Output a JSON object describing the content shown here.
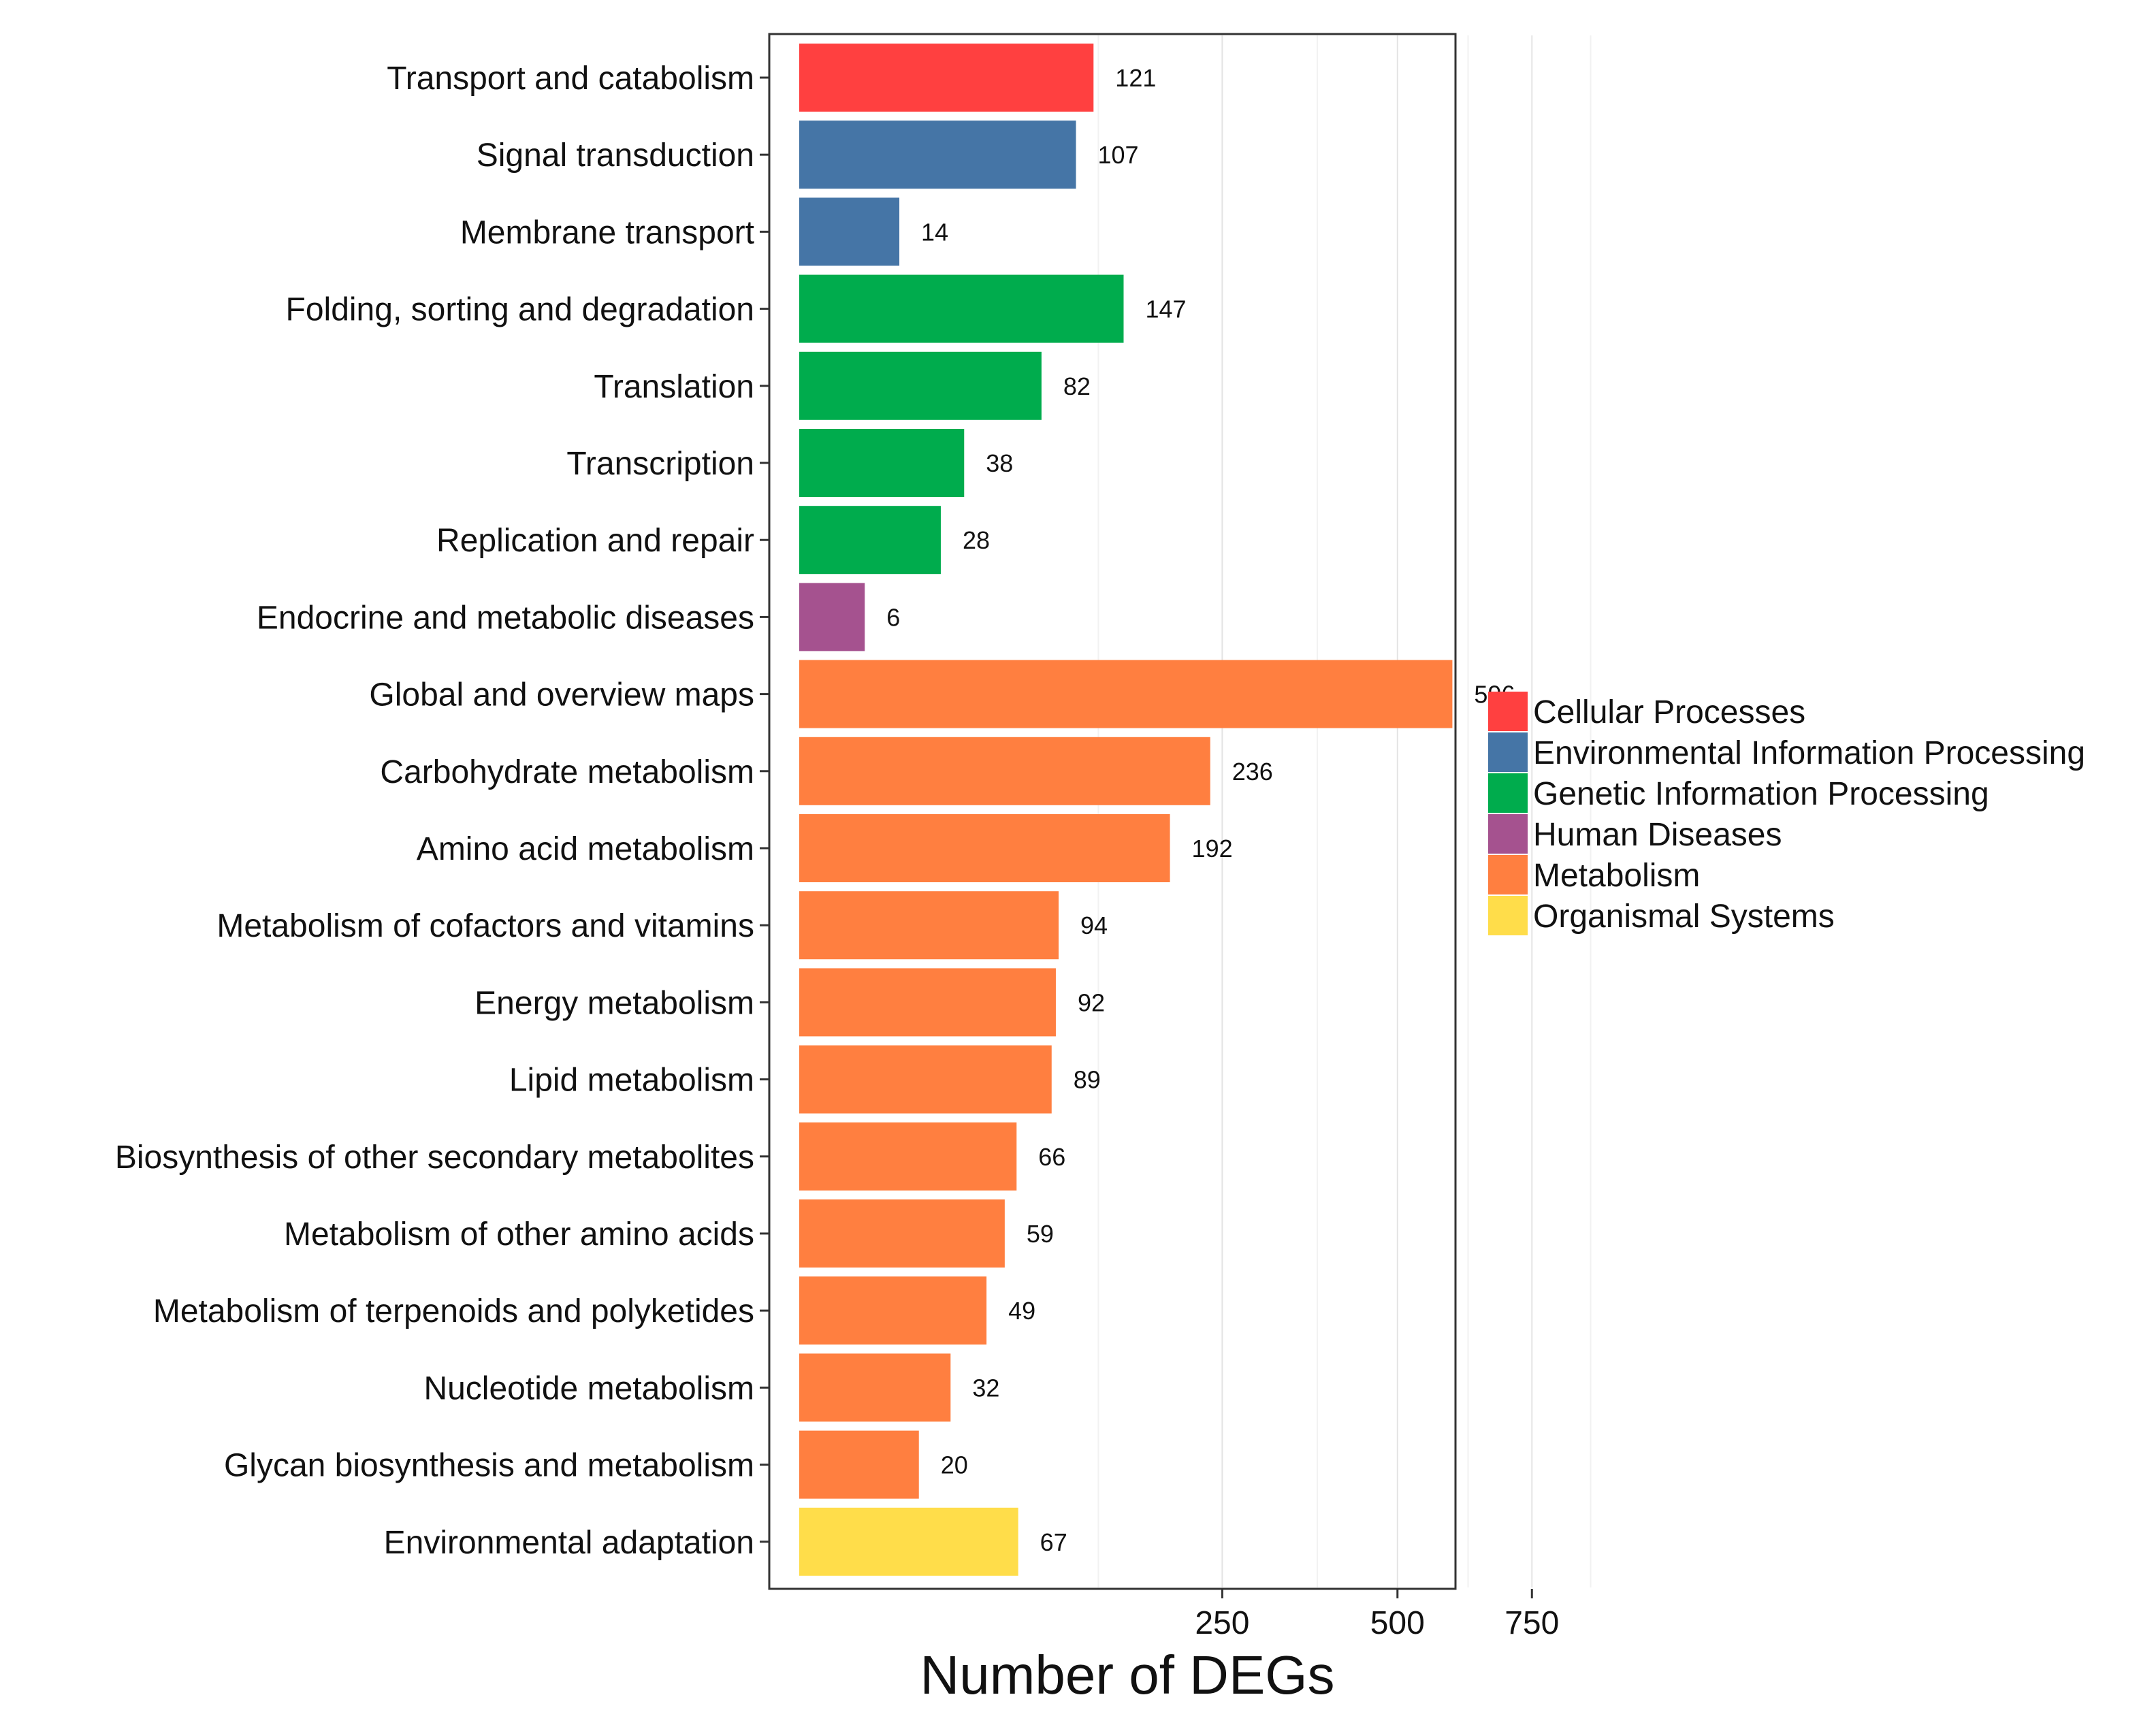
{
  "chart_data": {
    "type": "bar",
    "orientation": "horizontal",
    "xlabel": "Number of DEGs",
    "ylabel": "",
    "x_scale": "sqrt",
    "xlim": [
      0,
      900
    ],
    "x_ticks": [
      250,
      500,
      750
    ],
    "x_minor_gridlines": [
      125,
      375,
      625,
      875
    ],
    "grid": true,
    "legend_position": "right",
    "categories": [
      "Transport and catabolism",
      "Signal transduction",
      "Membrane transport",
      "Folding, sorting and degradation",
      "Translation",
      "Transcription",
      "Replication and repair",
      "Endocrine and metabolic diseases",
      "Global and overview maps",
      "Carbohydrate metabolism",
      "Amino acid metabolism",
      "Metabolism of cofactors and vitamins",
      "Energy metabolism",
      "Lipid metabolism",
      "Biosynthesis of other secondary metabolites",
      "Metabolism of other amino acids",
      "Metabolism of terpenoids and polyketides",
      "Nucleotide metabolism",
      "Glycan biosynthesis and metabolism",
      "Environmental adaptation"
    ],
    "values": [
      121,
      107,
      14,
      147,
      82,
      38,
      28,
      6,
      596,
      236,
      192,
      94,
      92,
      89,
      66,
      59,
      49,
      32,
      20,
      67
    ],
    "value_labels": [
      "121",
      "107",
      "14",
      "147",
      "82",
      "38",
      "28",
      "6",
      "596",
      "236",
      "192",
      "94",
      "92",
      "89",
      "66",
      "59",
      "49",
      "32",
      "20",
      "67"
    ],
    "groups": [
      "Cellular Processes",
      "Environmental Information Processing",
      "Environmental Information Processing",
      "Genetic Information Processing",
      "Genetic Information Processing",
      "Genetic Information Processing",
      "Genetic Information Processing",
      "Human Diseases",
      "Metabolism",
      "Metabolism",
      "Metabolism",
      "Metabolism",
      "Metabolism",
      "Metabolism",
      "Metabolism",
      "Metabolism",
      "Metabolism",
      "Metabolism",
      "Metabolism",
      "Organismal Systems"
    ],
    "legend": [
      {
        "name": "Cellular Processes",
        "color": "#FF4040"
      },
      {
        "name": "Environmental Information Processing",
        "color": "#4575A6"
      },
      {
        "name": "Genetic Information Processing",
        "color": "#00AC4D"
      },
      {
        "name": "Human Diseases",
        "color": "#A5528F"
      },
      {
        "name": "Metabolism",
        "color": "#FF7F40"
      },
      {
        "name": "Organismal Systems",
        "color": "#FFDD4A"
      }
    ]
  }
}
